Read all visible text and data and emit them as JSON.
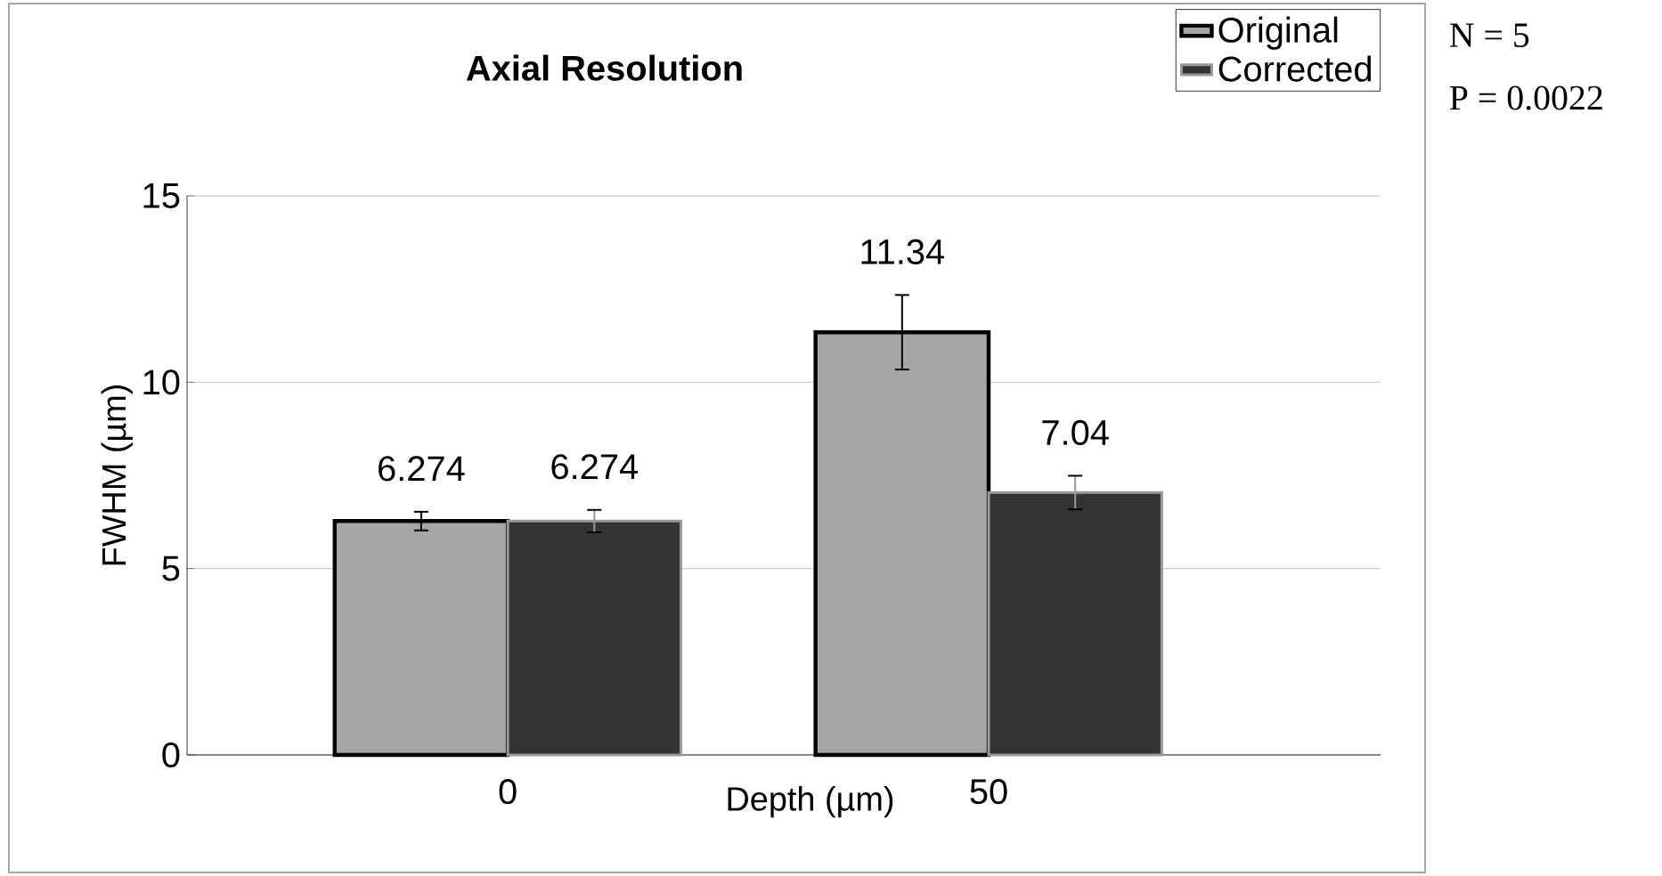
{
  "chart_data": {
    "type": "bar",
    "title": "Axial Resolution",
    "xlabel": "Depth (µm)",
    "ylabel": "FWHM (µm)",
    "categories": [
      "0",
      "50"
    ],
    "series": [
      {
        "name": "Original",
        "color": "#a6a6a6",
        "values": [
          6.274,
          11.34
        ],
        "errors": [
          0.25,
          1.0
        ]
      },
      {
        "name": "Corrected",
        "color": "#333333",
        "values": [
          6.274,
          7.04
        ],
        "errors": [
          0.3,
          0.45
        ]
      }
    ],
    "ylim": [
      0,
      15
    ],
    "yticks": [
      0,
      5,
      10,
      15
    ],
    "grid": "y",
    "legend": "top right",
    "data_labels": true,
    "annotations": [
      "N = 5",
      "P = 0.0022"
    ]
  }
}
